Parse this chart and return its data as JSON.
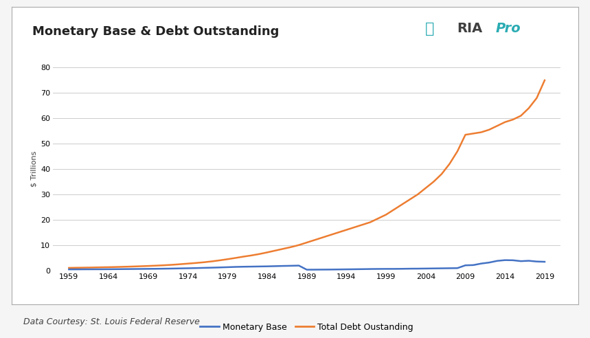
{
  "title": "Monetary Base & Debt Outstanding",
  "ylabel": "$ Trillions",
  "footnote": "Data Courtesy: St. Louis Federal Reserve",
  "background_color": "#f5f5f5",
  "plot_background": "#ffffff",
  "box_background": "#ffffff",
  "grid_color": "#cccccc",
  "title_fontsize": 13,
  "ylabel_fontsize": 8,
  "ylim": [
    0,
    80
  ],
  "yticks": [
    0,
    10,
    20,
    30,
    40,
    50,
    60,
    70,
    80
  ],
  "xtick_labels": [
    "1959",
    "1964",
    "1969",
    "1974",
    "1979",
    "1984",
    "1989",
    "1994",
    "1999",
    "2004",
    "2009",
    "2014",
    "2019"
  ],
  "monetary_base_color": "#4472C4",
  "debt_color": "#ED7D31",
  "legend_labels": [
    "Monetary Base",
    "Total Debt Oustanding"
  ],
  "ria_text_color": "#404040",
  "ria_pro_color": "#2AABB3",
  "ria_shield_color": "#2AABB3",
  "years": [
    1959,
    1960,
    1961,
    1962,
    1963,
    1964,
    1965,
    1966,
    1967,
    1968,
    1969,
    1970,
    1971,
    1972,
    1973,
    1974,
    1975,
    1976,
    1977,
    1978,
    1979,
    1980,
    1981,
    1982,
    1983,
    1984,
    1985,
    1986,
    1987,
    1988,
    1989,
    1990,
    1991,
    1992,
    1993,
    1994,
    1995,
    1996,
    1997,
    1998,
    1999,
    2000,
    2001,
    2002,
    2003,
    2004,
    2005,
    2006,
    2007,
    2008,
    2009,
    2010,
    2011,
    2012,
    2013,
    2014,
    2015,
    2016,
    2017,
    2018,
    2019
  ],
  "monetary_base": [
    0.4,
    0.41,
    0.43,
    0.44,
    0.45,
    0.47,
    0.49,
    0.52,
    0.55,
    0.58,
    0.61,
    0.64,
    0.68,
    0.73,
    0.79,
    0.85,
    0.92,
    1.0,
    1.08,
    1.17,
    1.27,
    1.38,
    1.45,
    1.5,
    1.55,
    1.6,
    1.68,
    1.76,
    1.82,
    1.9,
    0.28,
    0.3,
    0.32,
    0.34,
    0.38,
    0.42,
    0.46,
    0.5,
    0.55,
    0.58,
    0.6,
    0.6,
    0.63,
    0.68,
    0.7,
    0.74,
    0.78,
    0.82,
    0.86,
    0.9,
    2.0,
    2.1,
    2.7,
    3.1,
    3.75,
    4.05,
    4.0,
    3.65,
    3.8,
    3.5,
    3.4
  ],
  "total_debt": [
    1.0,
    1.05,
    1.1,
    1.15,
    1.22,
    1.28,
    1.35,
    1.44,
    1.53,
    1.64,
    1.75,
    1.88,
    2.03,
    2.21,
    2.44,
    2.68,
    2.93,
    3.21,
    3.55,
    3.96,
    4.42,
    4.91,
    5.43,
    5.9,
    6.45,
    7.1,
    7.8,
    8.5,
    9.2,
    10.0,
    11.0,
    12.0,
    13.0,
    14.0,
    15.0,
    16.0,
    17.0,
    18.0,
    19.0,
    20.5,
    22.0,
    24.0,
    26.0,
    28.0,
    30.0,
    32.5,
    35.0,
    38.0,
    42.0,
    47.0,
    53.5,
    54.0,
    54.5,
    55.5,
    57.0,
    58.5,
    59.5,
    61.0,
    64.0,
    68.0,
    75.0
  ]
}
